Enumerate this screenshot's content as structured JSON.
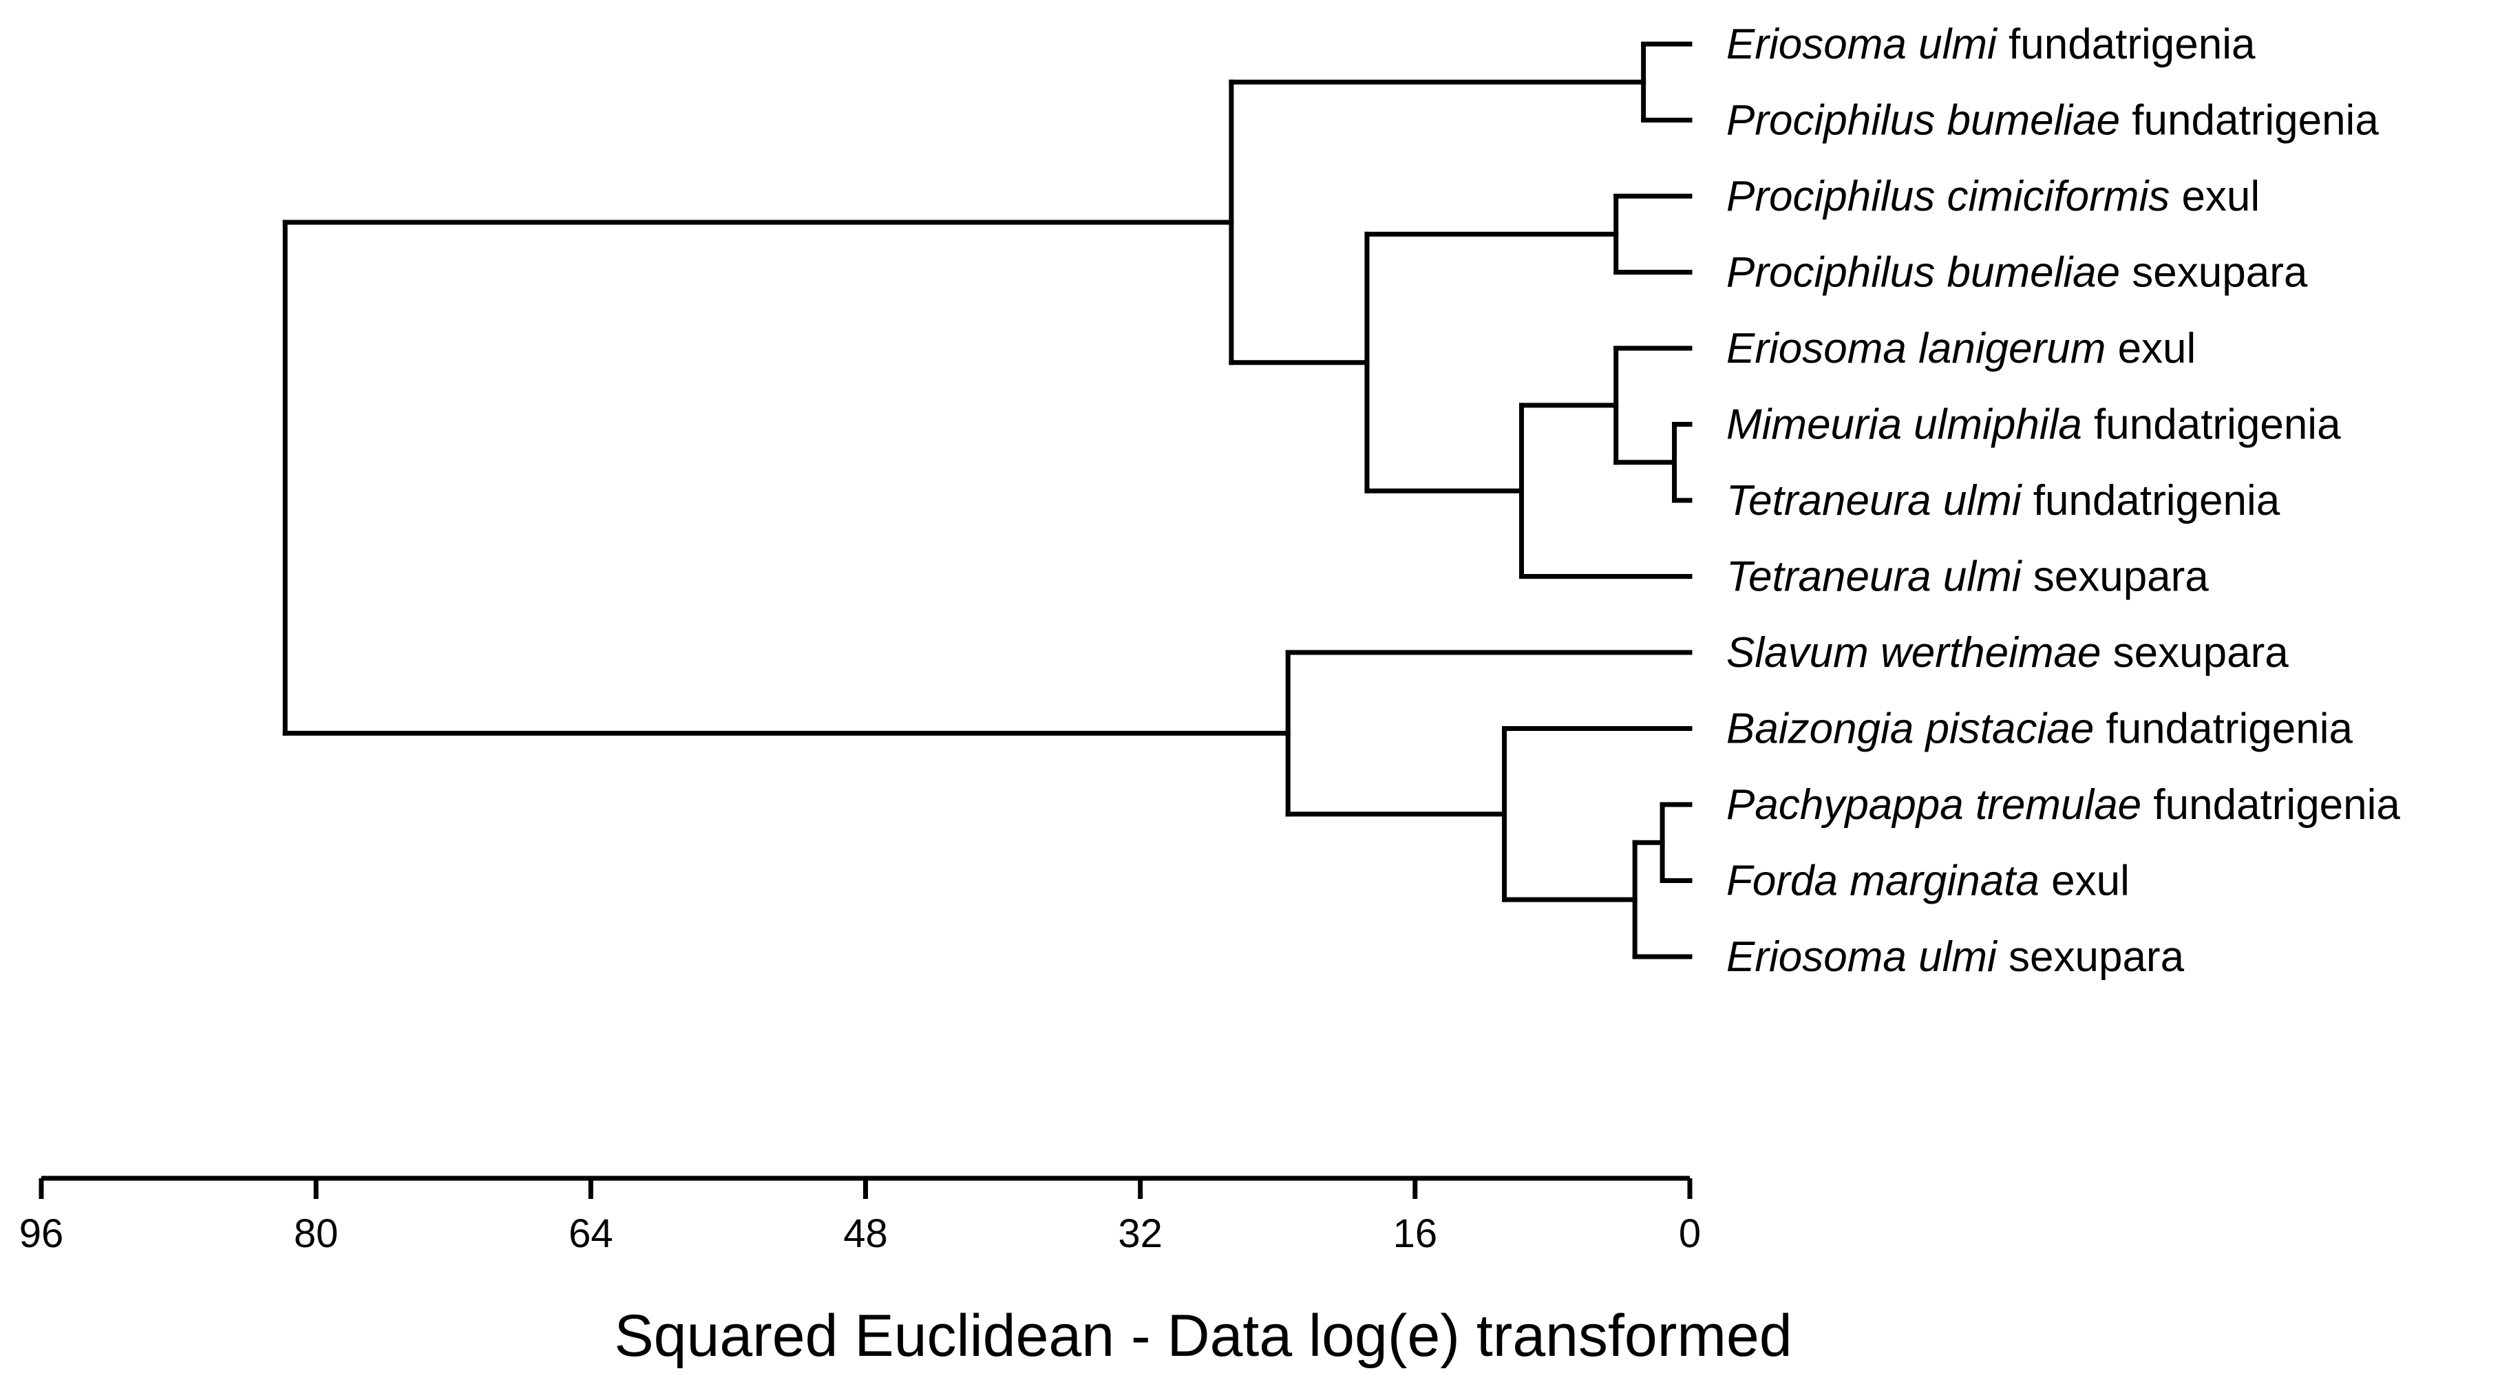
{
  "chart_data": {
    "type": "dendrogram",
    "xlabel": "Squared Euclidean - Data log(e) transformed",
    "xlim": [
      96,
      0
    ],
    "ticks": [
      "96",
      "80",
      "64",
      "48",
      "32",
      "16",
      "0"
    ],
    "leaves": [
      {
        "italic": "Eriosoma ulmi",
        "rest": " fundatrigenia"
      },
      {
        "italic": "Prociphilus bumeliae",
        "rest": " fundatrigenia"
      },
      {
        "italic": "Prociphilus cimiciformis",
        "rest": " exul"
      },
      {
        "italic": "Prociphilus bumeliae",
        "rest": " sexupara"
      },
      {
        "italic": "Eriosoma lanigerum",
        "rest": " exul"
      },
      {
        "italic": "Mimeuria ulmiphila",
        "rest": " fundatrigenia"
      },
      {
        "italic": "Tetraneura ulmi",
        "rest": " fundatrigenia"
      },
      {
        "italic": "Tetraneura ulmi",
        "rest": " sexupara"
      },
      {
        "italic": "Slavum wertheimae",
        "rest": " sexupara"
      },
      {
        "italic": "Baizongia pistaciae",
        "rest": " fundatrigenia"
      },
      {
        "italic": "Pachypappa tremulae",
        "rest": " fundatrigenia"
      },
      {
        "italic": "Forda marginata",
        "rest": " exul"
      },
      {
        "italic": "Eriosoma ulmi",
        "rest": " sexupara"
      }
    ],
    "merges": [
      {
        "id": "A",
        "children": [
          "L0",
          "L1"
        ],
        "height": 2.7
      },
      {
        "id": "B",
        "children": [
          "L2",
          "L3"
        ],
        "height": 4.3
      },
      {
        "id": "C",
        "children": [
          "L5",
          "L6"
        ],
        "height": 0.9
      },
      {
        "id": "D",
        "children": [
          "L4",
          "C"
        ],
        "height": 4.3
      },
      {
        "id": "E",
        "children": [
          "D",
          "L7"
        ],
        "height": 9.8
      },
      {
        "id": "F",
        "children": [
          "B",
          "E"
        ],
        "height": 18.8
      },
      {
        "id": "G",
        "children": [
          "A",
          "F"
        ],
        "height": 26.7
      },
      {
        "id": "H",
        "children": [
          "L10",
          "L11"
        ],
        "height": 1.6
      },
      {
        "id": "I",
        "children": [
          "H",
          "L12"
        ],
        "height": 3.2
      },
      {
        "id": "J",
        "children": [
          "L9",
          "I"
        ],
        "height": 10.8
      },
      {
        "id": "K",
        "children": [
          "L8",
          "J"
        ],
        "height": 23.4
      },
      {
        "id": "ROOT",
        "children": [
          "G",
          "K"
        ],
        "height": 81.8
      }
    ]
  }
}
